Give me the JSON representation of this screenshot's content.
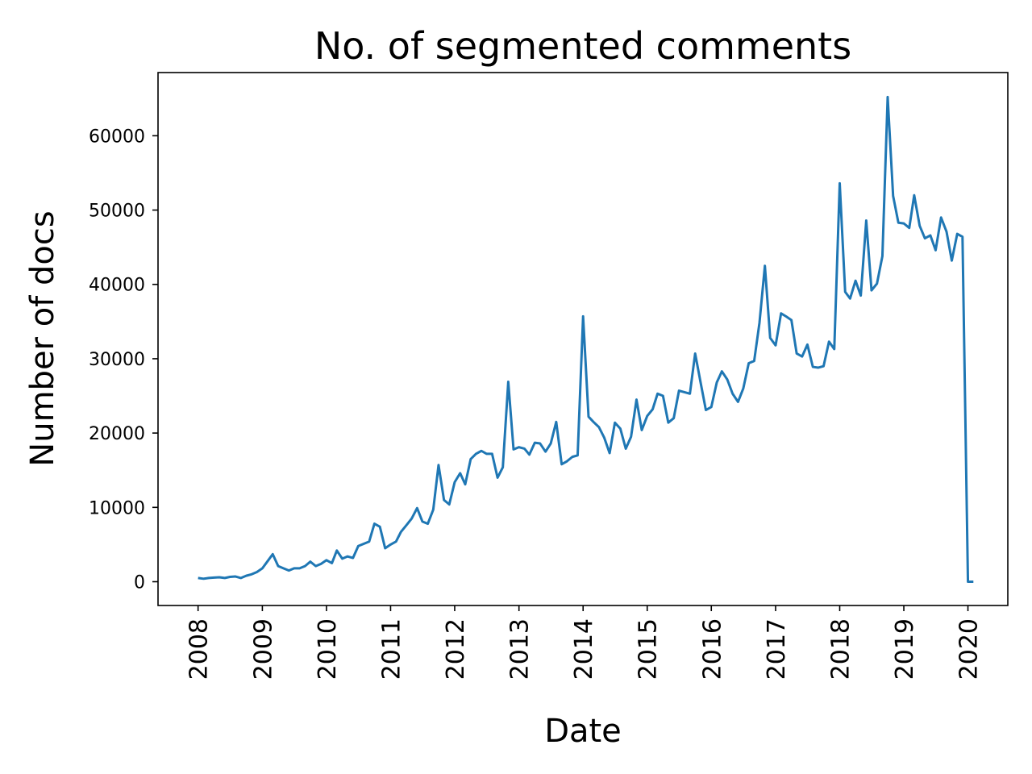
{
  "chart_data": {
    "type": "line",
    "title": "No. of segmented comments",
    "xlabel": "Date",
    "ylabel": "Number of docs",
    "xlim": [
      "2007-05-18",
      "2020-08-15"
    ],
    "ylim": [
      -3200,
      68500
    ],
    "grid": false,
    "x_ticks": [
      "2008",
      "2009",
      "2010",
      "2011",
      "2012",
      "2013",
      "2014",
      "2015",
      "2016",
      "2017",
      "2018",
      "2019",
      "2020"
    ],
    "y_ticks": [
      0,
      10000,
      20000,
      30000,
      40000,
      50000,
      60000
    ],
    "y_tick_labels": [
      "0",
      "10000",
      "20000",
      "30000",
      "40000",
      "50000",
      "60000"
    ],
    "colors": {
      "line": "#1f77b4"
    },
    "series": [
      {
        "x": [
          "2008-01",
          "2008-02",
          "2008-03",
          "2008-04",
          "2008-05",
          "2008-06",
          "2008-07",
          "2008-08",
          "2008-09",
          "2008-10",
          "2008-11",
          "2008-12",
          "2009-01",
          "2009-02",
          "2009-03",
          "2009-04",
          "2009-05",
          "2009-06",
          "2009-07",
          "2009-08",
          "2009-09",
          "2009-10",
          "2009-11",
          "2009-12",
          "2010-01",
          "2010-02",
          "2010-03",
          "2010-04",
          "2010-05",
          "2010-06",
          "2010-07",
          "2010-08",
          "2010-09",
          "2010-10",
          "2010-11",
          "2010-12",
          "2011-01",
          "2011-02",
          "2011-03",
          "2011-04",
          "2011-05",
          "2011-06",
          "2011-07",
          "2011-08",
          "2011-09",
          "2011-10",
          "2011-11",
          "2011-12",
          "2012-01",
          "2012-02",
          "2012-03",
          "2012-04",
          "2012-05",
          "2012-06",
          "2012-07",
          "2012-08",
          "2012-09",
          "2012-10",
          "2012-11",
          "2012-12",
          "2013-01",
          "2013-02",
          "2013-03",
          "2013-04",
          "2013-05",
          "2013-06",
          "2013-07",
          "2013-08",
          "2013-09",
          "2013-10",
          "2013-11",
          "2013-12",
          "2014-01",
          "2014-02",
          "2014-03",
          "2014-04",
          "2014-05",
          "2014-06",
          "2014-07",
          "2014-08",
          "2014-09",
          "2014-10",
          "2014-11",
          "2014-12",
          "2015-01",
          "2015-02",
          "2015-03",
          "2015-04",
          "2015-05",
          "2015-06",
          "2015-07",
          "2015-08",
          "2015-09",
          "2015-10",
          "2015-11",
          "2015-12",
          "2016-01",
          "2016-02",
          "2016-03",
          "2016-04",
          "2016-05",
          "2016-06",
          "2016-07",
          "2016-08",
          "2016-09",
          "2016-10",
          "2016-11",
          "2016-12",
          "2017-01",
          "2017-02",
          "2017-03",
          "2017-04",
          "2017-05",
          "2017-06",
          "2017-07",
          "2017-08",
          "2017-09",
          "2017-10",
          "2017-11",
          "2017-12",
          "2018-01",
          "2018-02",
          "2018-03",
          "2018-04",
          "2018-05",
          "2018-06",
          "2018-07",
          "2018-08",
          "2018-09",
          "2018-10",
          "2018-11",
          "2018-12",
          "2019-01",
          "2019-02",
          "2019-03",
          "2019-04",
          "2019-05",
          "2019-06",
          "2019-07",
          "2019-08",
          "2019-09",
          "2019-10",
          "2019-11",
          "2019-12",
          "2020-01",
          "2020-02"
        ],
        "values": [
          500,
          400,
          500,
          550,
          600,
          500,
          650,
          700,
          500,
          800,
          1000,
          1300,
          1800,
          2800,
          3700,
          2100,
          1800,
          1500,
          1800,
          1800,
          2100,
          2700,
          2100,
          2400,
          2900,
          2500,
          4200,
          3100,
          3400,
          3200,
          4800,
          5100,
          5400,
          7800,
          7400,
          4500,
          5000,
          5400,
          6700,
          7600,
          8500,
          9900,
          8100,
          7800,
          9700,
          15700,
          11000,
          10400,
          13400,
          14600,
          13100,
          16500,
          17200,
          17600,
          17200,
          17200,
          14000,
          15400,
          26900,
          17800,
          18100,
          17900,
          17100,
          18700,
          18600,
          17500,
          18600,
          21500,
          15800,
          16200,
          16800,
          17000,
          35700,
          22200,
          21500,
          20800,
          19400,
          17300,
          21400,
          20600,
          17900,
          19500,
          24500,
          20400,
          22300,
          23200,
          25300,
          25000,
          21400,
          22000,
          25700,
          25500,
          25300,
          30700,
          26800,
          23100,
          23500,
          26800,
          28300,
          27200,
          25300,
          24200,
          26000,
          29400,
          29700,
          34800,
          42500,
          32800,
          31800,
          36100,
          35700,
          35200,
          30700,
          30300,
          31900,
          28900,
          28800,
          29000,
          32300,
          31300,
          53600,
          39000,
          38100,
          40500,
          38500,
          48600,
          39200,
          40100,
          43800,
          65200,
          51900,
          48300,
          48200,
          47600,
          52000,
          47900,
          46200,
          46600,
          44600,
          49000,
          47100,
          43200,
          46800,
          46400,
          0,
          0
        ]
      }
    ]
  }
}
